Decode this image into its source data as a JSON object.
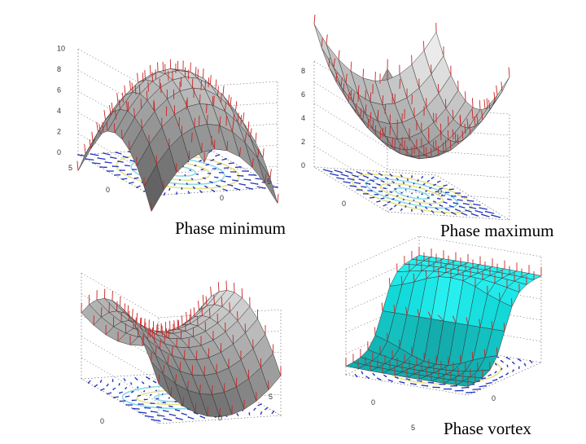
{
  "panels": {
    "minimum": {
      "caption": "Phase minimum",
      "z_ticks": [
        "0",
        "2",
        "4",
        "6",
        "8",
        "10"
      ],
      "x_ticks": [
        "5",
        "0"
      ],
      "y_ticks": [
        "0",
        "5"
      ],
      "surface_color": "#c8c8c8"
    },
    "maximum": {
      "caption": "Phase maximum",
      "z_ticks": [
        "0",
        "2",
        "4",
        "6",
        "8"
      ],
      "x_ticks": [
        "0"
      ],
      "y_ticks": [
        "0"
      ],
      "surface_color": "#c8c8c8"
    },
    "saddle": {
      "caption": "",
      "x_ticks": [
        "0"
      ],
      "y_ticks": [
        "0",
        "5"
      ],
      "surface_color": "#c0c0c0"
    },
    "vortex": {
      "caption": "Phase vortex",
      "x_ticks": [
        "0",
        "5"
      ],
      "y_ticks": [
        "0"
      ],
      "surface_color": "#33e0e0"
    }
  },
  "colors": {
    "normals": "#cc2222",
    "arrows": "#2233bb",
    "contour_1": "#7fd6e6",
    "contour_2": "#e6e07a",
    "axes": "#555555"
  }
}
